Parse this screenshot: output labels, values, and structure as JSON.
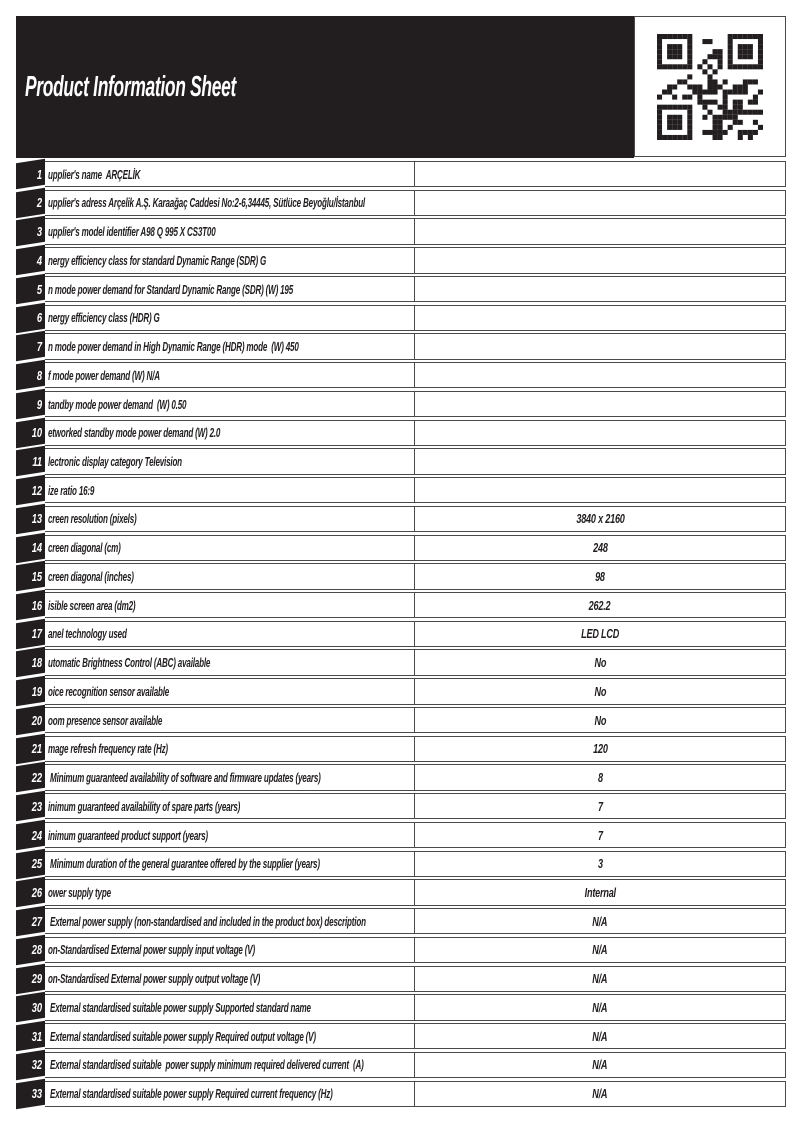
{
  "colors": {
    "ink": "#221e1f",
    "line": "#4a4a4c",
    "paper": "#ffffff"
  },
  "icons": {
    "qr": "qr-code"
  },
  "header": {
    "title": "Product Information Sheet"
  },
  "table": {
    "rows": [
      {
        "num": "1",
        "label": "upplier's name  ARÇELİK",
        "value": ""
      },
      {
        "num": "2",
        "label": "upplier's adress Arçelik A.Ş. Karaağaç Caddesi No:2-6,34445, Sütlüce Beyoğlu/İstanbul",
        "value": ""
      },
      {
        "num": "3",
        "label": "upplier's model identifier A98 Q 995 X CS3T00",
        "value": ""
      },
      {
        "num": "4",
        "label": "nergy efficiency class for standard Dynamic Range (SDR) G",
        "value": ""
      },
      {
        "num": "5",
        "label": "n mode power demand for Standard Dynamic Range (SDR) (W) 195",
        "value": ""
      },
      {
        "num": "6",
        "label": "nergy efficiency class (HDR) G",
        "value": ""
      },
      {
        "num": "7",
        "label": "n mode power demand in High Dynamic Range (HDR) mode  (W) 450",
        "value": ""
      },
      {
        "num": "8",
        "label": "f mode power demand (W) N/A",
        "value": ""
      },
      {
        "num": "9",
        "label": "tandby mode power demand  (W) 0.50",
        "value": ""
      },
      {
        "num": "10",
        "label": "etworked standby mode power demand (W) 2.0",
        "value": ""
      },
      {
        "num": "11",
        "label": "lectronic display category Television",
        "value": ""
      },
      {
        "num": "12",
        "label": "ize ratio 16:9",
        "value": ""
      },
      {
        "num": "13",
        "label": "creen resolution (pixels)",
        "value": "3840 x 2160"
      },
      {
        "num": "14",
        "label": "creen diagonal (cm)",
        "value": "248"
      },
      {
        "num": "15",
        "label": "creen diagonal (inches)",
        "value": "98"
      },
      {
        "num": "16",
        "label": "isible screen area (dm2)",
        "value": "262.2"
      },
      {
        "num": "17",
        "label": "anel technology used",
        "value": "LED LCD"
      },
      {
        "num": "18",
        "label": "utomatic Brightness Control (ABC) available",
        "value": "No"
      },
      {
        "num": "19",
        "label": "oice recognition sensor available",
        "value": "No"
      },
      {
        "num": "20",
        "label": "oom presence sensor available",
        "value": "No"
      },
      {
        "num": "21",
        "label": "mage refresh frequency rate (Hz)",
        "value": "120"
      },
      {
        "num": "22",
        "label": " Minimum guaranteed availability of software and firmware updates (years)",
        "value": "8"
      },
      {
        "num": "23",
        "label": "inimum guaranteed availability of spare parts (years)",
        "value": "7"
      },
      {
        "num": "24",
        "label": "inimum guaranteed product support (years)",
        "value": "7"
      },
      {
        "num": "25",
        "label": " Minimum duration of the general guarantee offered by the supplier (years)",
        "value": "3"
      },
      {
        "num": "26",
        "label": "ower supply type",
        "value": "Internal"
      },
      {
        "num": "27",
        "label": " External power supply (non-standardised and included in the product box) description",
        "value": "N/A"
      },
      {
        "num": "28",
        "label": "on-Standardised External power supply input voltage (V)",
        "value": "N/A"
      },
      {
        "num": "29",
        "label": "on-Standardised External power supply output voltage (V)",
        "value": "N/A"
      },
      {
        "num": "30",
        "label": " External standardised suitable power supply Supported standard name",
        "value": "N/A"
      },
      {
        "num": "31",
        "label": " External standardised suitable power supply Required output voltage (V)",
        "value": "N/A"
      },
      {
        "num": "32",
        "label": " External standardised suitable  power supply minimum required delivered current  (A)",
        "value": "N/A"
      },
      {
        "num": "33",
        "label": " External standardised suitable power supply Required current frequency (Hz)",
        "value": "N/A"
      }
    ]
  }
}
